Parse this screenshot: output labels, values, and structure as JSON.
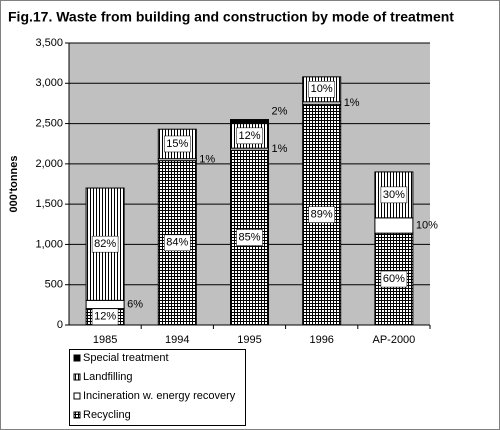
{
  "chart_data": {
    "type": "stacked_bar",
    "title": "Fig.17. Waste from building and construction by mode of treatment",
    "y_label": "000'tonnes",
    "categories": [
      "1985",
      "1994",
      "1995",
      "1996",
      "AP-2000"
    ],
    "series": [
      {
        "name": "Recycling",
        "color": "#000000",
        "pattern": "grid",
        "values": [
          204,
          2040,
          2170,
          2740,
          1140
        ],
        "labels": [
          "12%",
          "84%",
          "85%",
          "89%",
          "60%"
        ]
      },
      {
        "name": "Incineration w. energy recovery",
        "color": "#000000",
        "pattern": "none",
        "values": [
          102,
          24,
          25,
          30,
          190
        ],
        "labels": [
          "6%",
          "1%",
          "1%",
          "1%",
          "10%"
        ]
      },
      {
        "name": "Landfilling",
        "color": "#000000",
        "pattern": "vertical",
        "values": [
          1394,
          366,
          305,
          310,
          570
        ],
        "labels": [
          "82%",
          "15%",
          "12%",
          "10%",
          "30%"
        ]
      },
      {
        "name": "Special treatment",
        "color": "#000000",
        "pattern": "solid",
        "values": [
          0,
          0,
          50,
          0,
          0
        ],
        "labels": [
          null,
          null,
          "2%",
          null,
          null
        ]
      }
    ],
    "ylim": [
      0,
      3500
    ],
    "yticks": [
      0,
      500,
      {
        "value": 1000,
        "label": "1,000"
      },
      {
        "value": 1500,
        "label": "1,500"
      },
      {
        "value": 2000,
        "label": "2,000"
      },
      {
        "value": 2500,
        "label": "2,500"
      },
      {
        "value": 3000,
        "label": "3,000"
      },
      {
        "value": 3500,
        "label": "3,500"
      }
    ],
    "grid": true
  }
}
